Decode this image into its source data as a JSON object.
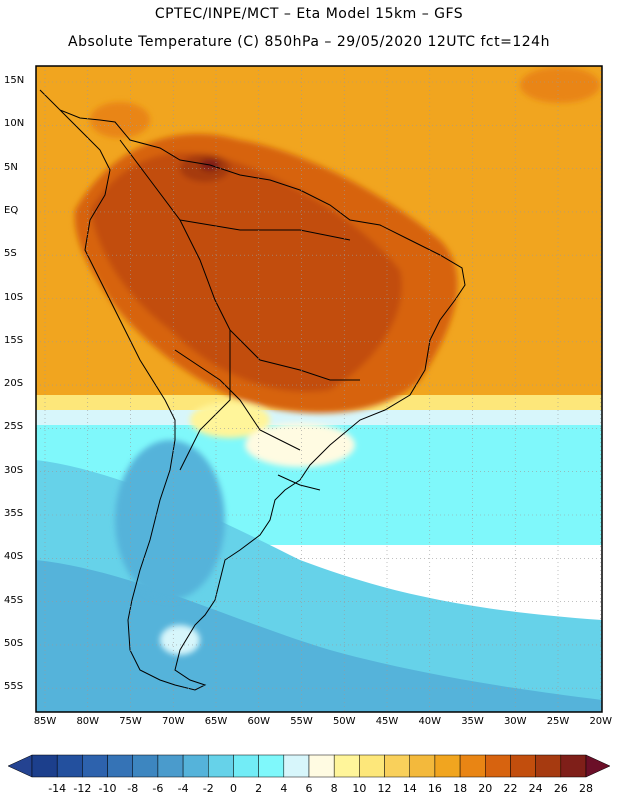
{
  "header": {
    "line1": "CPTEC/INPE/MCT –  Eta Model 15km – GFS",
    "line2": "Absolute Temperature (C) 850hPa – 29/05/2020 12UTC fct=124h"
  },
  "map": {
    "lat_labels": [
      "15N",
      "10N",
      "5N",
      "EQ",
      "5S",
      "10S",
      "15S",
      "20S",
      "25S",
      "30S",
      "35S",
      "40S",
      "45S",
      "50S",
      "55S"
    ],
    "lon_labels": [
      "85W",
      "80W",
      "75W",
      "70W",
      "65W",
      "60W",
      "55W",
      "50W",
      "45W",
      "40W",
      "35W",
      "30W",
      "25W",
      "20W"
    ]
  },
  "colorbar": {
    "labels": [
      "-14",
      "-12",
      "-10",
      "-8",
      "-6",
      "-4",
      "-2",
      "0",
      "2",
      "4",
      "6",
      "8",
      "10",
      "12",
      "14",
      "16",
      "18",
      "20",
      "22",
      "24",
      "26",
      "28"
    ],
    "colors": [
      "#1c3f8c",
      "#23509e",
      "#2d62ad",
      "#3573b6",
      "#3d86c0",
      "#4a9bcc",
      "#55b3da",
      "#66d2e9",
      "#72ecf6",
      "#7ff8fb",
      "#d7f6fb",
      "#fffbe2",
      "#fff59a",
      "#fde77a",
      "#f9d05b",
      "#f3b93c",
      "#f1a51f",
      "#e98514",
      "#d7630f",
      "#c24e0d",
      "#a63a10",
      "#7f1f19"
    ],
    "under_color": "#244391",
    "over_color": "#6b0f28"
  }
}
